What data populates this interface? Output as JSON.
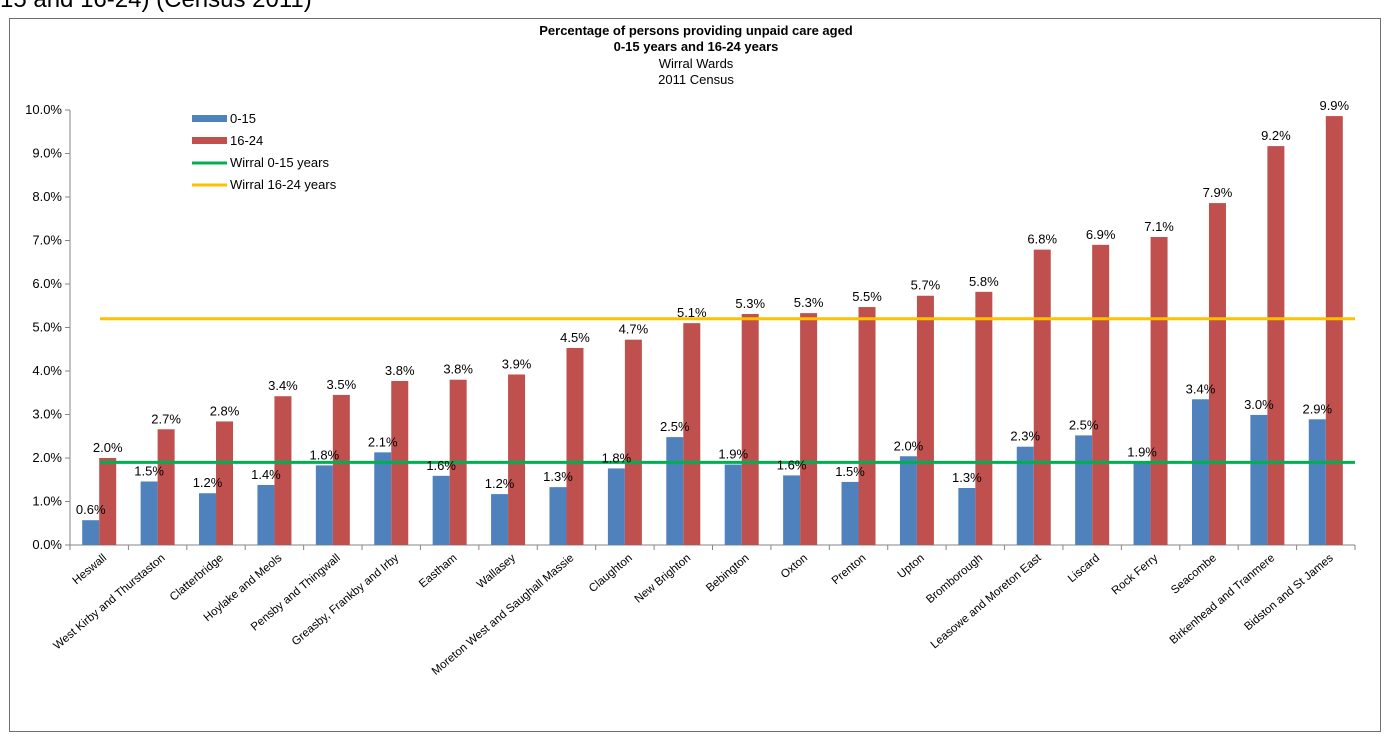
{
  "page_header": "15 and 16-24) (Census 2011)",
  "chart_data": {
    "type": "bar",
    "title": "Percentage of persons providing unpaid care aged",
    "title_line2": "0-15 years and 16-24 years",
    "subtitle": "Wirral Wards",
    "subtitle_line2": "2011 Census",
    "ylim": [
      0,
      10
    ],
    "y_ticks": [
      "0.0%",
      "1.0%",
      "2.0%",
      "3.0%",
      "4.0%",
      "5.0%",
      "6.0%",
      "7.0%",
      "8.0%",
      "9.0%",
      "10.0%"
    ],
    "categories": [
      "Heswall",
      "West Kirby and Thurstaston",
      "Clatterbridge",
      "Hoylake and Meols",
      "Pensby and Thingwall",
      "Greasby, Frankby and Irby",
      "Eastham",
      "Wallasey",
      "Moreton West and Saughall Massie",
      "Claughton",
      "New Brighton",
      "Bebington",
      "Oxton",
      "Prenton",
      "Upton",
      "Bromborough",
      "Leasowe and Moreton East",
      "Liscard",
      "Rock Ferry",
      "Seacombe",
      "Birkenhead and Tranmere",
      "Bidston and St James"
    ],
    "series": [
      {
        "name": "0-15",
        "color": "#4f81bd",
        "values": [
          0.57,
          1.46,
          1.19,
          1.38,
          1.83,
          2.13,
          1.59,
          1.17,
          1.33,
          1.76,
          2.48,
          1.85,
          1.6,
          1.45,
          2.04,
          1.31,
          2.26,
          2.52,
          1.9,
          3.35,
          2.99,
          2.89
        ],
        "labels": [
          "0.6%",
          "1.5%",
          "1.2%",
          "1.4%",
          "1.8%",
          "2.1%",
          "1.6%",
          "1.2%",
          "1.3%",
          "1.8%",
          "2.5%",
          "1.9%",
          "1.6%",
          "1.5%",
          "2.0%",
          "1.3%",
          "2.3%",
          "2.5%",
          "1.9%",
          "3.4%",
          "3.0%",
          "2.9%"
        ]
      },
      {
        "name": "16-24",
        "color": "#c0504d",
        "values": [
          2.0,
          2.66,
          2.84,
          3.42,
          3.45,
          3.77,
          3.8,
          3.92,
          4.53,
          4.72,
          5.1,
          5.31,
          5.33,
          5.47,
          5.73,
          5.82,
          6.79,
          6.9,
          7.08,
          7.86,
          9.17,
          9.86
        ],
        "labels": [
          "2.0%",
          "2.7%",
          "2.8%",
          "3.4%",
          "3.5%",
          "3.8%",
          "3.8%",
          "3.9%",
          "4.5%",
          "4.7%",
          "5.1%",
          "5.3%",
          "5.3%",
          "5.5%",
          "5.7%",
          "5.8%",
          "6.8%",
          "6.9%",
          "7.1%",
          "7.9%",
          "9.2%",
          "9.9%"
        ]
      }
    ],
    "reference_lines": [
      {
        "name": "Wirral 0-15 years",
        "value": 1.9,
        "color": "#00b050"
      },
      {
        "name": "Wirral 16-24 years",
        "value": 5.2,
        "color": "#ffc000"
      }
    ],
    "legend_position": "top-left",
    "grid": false
  }
}
